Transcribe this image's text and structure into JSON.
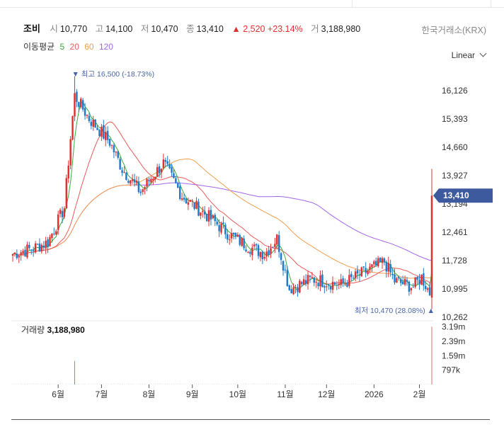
{
  "header": {
    "name": "조비",
    "open_label": "시",
    "open": "10,770",
    "high_label": "고",
    "high": "14,100",
    "low_label": "저",
    "low": "10,470",
    "close_label": "종",
    "close": "13,410",
    "change": "▲ 2,520 +23.14%",
    "volume_label": "거",
    "volume": "3,188,980"
  },
  "exchange": "한국거래소(KRX)",
  "ma_legend": {
    "label": "이동평균",
    "items": [
      "5",
      "20",
      "60",
      "120"
    ]
  },
  "scale_label": "Linear",
  "colors": {
    "up": "#e03131",
    "down": "#1f7ac9",
    "ma5": "#3aaa3a",
    "ma20": "#e85a5a",
    "ma60": "#f0a050",
    "ma120": "#a565e8",
    "label_bg": "#3d5a9e"
  },
  "chart_data": {
    "type": "candlestick",
    "price_axis": {
      "ticks": [
        "16,126",
        "15,393",
        "14,660",
        "13,927",
        "13,194",
        "12,461",
        "11,728",
        "10,995",
        "10,262"
      ],
      "range": [
        10262,
        16860
      ]
    },
    "time_axis": {
      "ticks": [
        "6월",
        "7월",
        "8월",
        "9월",
        "10월",
        "11월",
        "12월",
        "2026",
        "2월"
      ]
    },
    "current_price_label": "13,410",
    "max_annotation": "▼ 최고 16,500 (-18.73%)",
    "min_annotation": "최저 10,470 (28.08%) ▲",
    "volume": {
      "label": "거래량",
      "value": "3,188,980",
      "ticks": [
        "3.19m",
        "2.39m",
        "1.59m",
        "797k"
      ]
    },
    "anchors": [
      {
        "date": "2025-05-01",
        "price": 11900
      },
      {
        "date": "2025-05-15",
        "price": 12050
      },
      {
        "date": "2025-05-25",
        "price": 12200
      },
      {
        "date": "2025-06-05",
        "price": 13100
      },
      {
        "date": "2025-06-10",
        "price": 14900
      },
      {
        "date": "2025-06-12",
        "price": 16000
      },
      {
        "date": "2025-06-22",
        "price": 15400
      },
      {
        "date": "2025-07-05",
        "price": 14800
      },
      {
        "date": "2025-07-15",
        "price": 14100
      },
      {
        "date": "2025-07-28",
        "price": 13500
      },
      {
        "date": "2025-08-01",
        "price": 13800
      },
      {
        "date": "2025-08-12",
        "price": 14250
      },
      {
        "date": "2025-08-25",
        "price": 13400
      },
      {
        "date": "2025-09-10",
        "price": 12900
      },
      {
        "date": "2025-09-25",
        "price": 12400
      },
      {
        "date": "2025-10-08",
        "price": 12100
      },
      {
        "date": "2025-10-18",
        "price": 11900
      },
      {
        "date": "2025-10-28",
        "price": 12300
      },
      {
        "date": "2025-11-05",
        "price": 11000
      },
      {
        "date": "2025-11-20",
        "price": 11250
      },
      {
        "date": "2025-12-10",
        "price": 11100
      },
      {
        "date": "2025-12-30",
        "price": 11500
      },
      {
        "date": "2026-01-08",
        "price": 11700
      },
      {
        "date": "2026-01-15",
        "price": 11200
      },
      {
        "date": "2026-01-28",
        "price": 11050
      },
      {
        "date": "2026-02-03",
        "price": 11300
      },
      {
        "date": "2026-02-08",
        "price": 10900
      },
      {
        "date": "2026-02-10",
        "price": 10890
      }
    ],
    "last_candle": {
      "open": 10770,
      "high": 14100,
      "low": 10470,
      "close": 13410
    }
  }
}
